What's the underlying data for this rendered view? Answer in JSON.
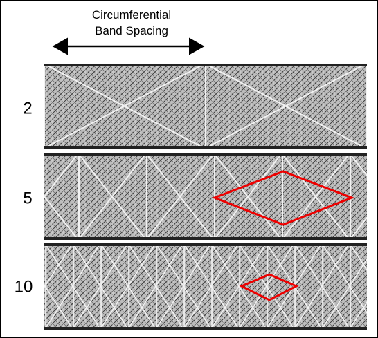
{
  "header": {
    "title_lines": [
      "Circumferential",
      "Band Spacing"
    ]
  },
  "rows": [
    {
      "label": "2"
    },
    {
      "label": "5"
    },
    {
      "label": "10"
    }
  ]
}
